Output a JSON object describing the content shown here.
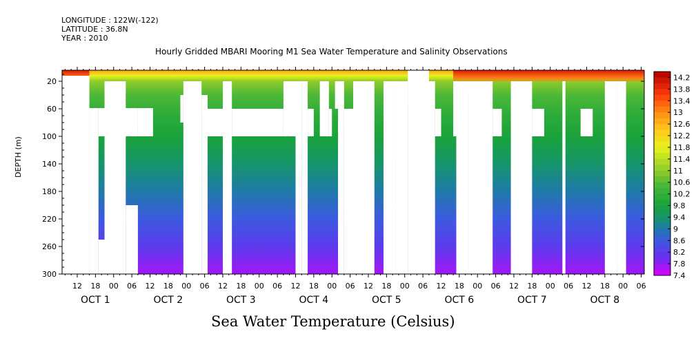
{
  "header": {
    "longitude": "LONGITUDE : 122W(-122)",
    "latitude": "LATITUDE : 36.8N",
    "year": "YEAR : 2010"
  },
  "chart_data": {
    "type": "heatmap",
    "title": "Hourly Gridded MBARI Mooring M1 Sea Water Temperature and Salinity Observations",
    "xlabel": "Sea Water Temperature (Celsius)",
    "ylabel": "DEPTH (m)",
    "x_unit": "hours since 2010-10-01 00:00",
    "xlim": [
      7,
      199
    ],
    "ylim": [
      300,
      4
    ],
    "y_ticks": [
      20,
      60,
      100,
      140,
      180,
      220,
      260,
      300
    ],
    "x_hour_ticks": [
      {
        "h": 12,
        "label": "12"
      },
      {
        "h": 18,
        "label": "18"
      },
      {
        "h": 24,
        "label": "00"
      },
      {
        "h": 30,
        "label": "06"
      },
      {
        "h": 36,
        "label": "12"
      },
      {
        "h": 42,
        "label": "18"
      },
      {
        "h": 48,
        "label": "00"
      },
      {
        "h": 54,
        "label": "06"
      },
      {
        "h": 60,
        "label": "12"
      },
      {
        "h": 66,
        "label": "18"
      },
      {
        "h": 72,
        "label": "00"
      },
      {
        "h": 78,
        "label": "06"
      },
      {
        "h": 84,
        "label": "12"
      },
      {
        "h": 90,
        "label": "18"
      },
      {
        "h": 96,
        "label": "00"
      },
      {
        "h": 102,
        "label": "06"
      },
      {
        "h": 108,
        "label": "12"
      },
      {
        "h": 114,
        "label": "18"
      },
      {
        "h": 120,
        "label": "00"
      },
      {
        "h": 126,
        "label": "06"
      },
      {
        "h": 132,
        "label": "12"
      },
      {
        "h": 138,
        "label": "18"
      },
      {
        "h": 144,
        "label": "00"
      },
      {
        "h": 150,
        "label": "06"
      },
      {
        "h": 156,
        "label": "12"
      },
      {
        "h": 162,
        "label": "18"
      },
      {
        "h": 168,
        "label": "00"
      },
      {
        "h": 174,
        "label": "06"
      },
      {
        "h": 180,
        "label": "12"
      },
      {
        "h": 186,
        "label": "18"
      },
      {
        "h": 192,
        "label": "00"
      },
      {
        "h": 198,
        "label": "06"
      }
    ],
    "x_day_labels": [
      {
        "h": 18,
        "label": "OCT 1"
      },
      {
        "h": 42,
        "label": "OCT 2"
      },
      {
        "h": 66,
        "label": "OCT 3"
      },
      {
        "h": 90,
        "label": "OCT 4"
      },
      {
        "h": 114,
        "label": "OCT 5"
      },
      {
        "h": 138,
        "label": "OCT 6"
      },
      {
        "h": 162,
        "label": "OCT 7"
      },
      {
        "h": 186,
        "label": "OCT 8"
      }
    ],
    "colorbar": {
      "min": 7.4,
      "max": 14.4,
      "step": 0.2,
      "labels": [
        14.2,
        13.8,
        13.4,
        13,
        12.6,
        12.2,
        11.8,
        11.4,
        11,
        10.6,
        10.2,
        9.8,
        9.4,
        9,
        8.6,
        8.2,
        7.8,
        7.4
      ]
    },
    "color_stops": [
      {
        "v": 7.4,
        "c": "#dd00ff"
      },
      {
        "v": 8.0,
        "c": "#6a2cf0"
      },
      {
        "v": 8.6,
        "c": "#3c5ae0"
      },
      {
        "v": 9.0,
        "c": "#1f7aa8"
      },
      {
        "v": 9.4,
        "c": "#15956a"
      },
      {
        "v": 9.8,
        "c": "#1aa33a"
      },
      {
        "v": 10.4,
        "c": "#3fb43a"
      },
      {
        "v": 11.0,
        "c": "#8fcc2a"
      },
      {
        "v": 11.8,
        "c": "#e8f21c"
      },
      {
        "v": 12.4,
        "c": "#ffc81a"
      },
      {
        "v": 13.0,
        "c": "#ff8c14"
      },
      {
        "v": 13.6,
        "c": "#ff3a0a"
      },
      {
        "v": 14.4,
        "c": "#b00000"
      }
    ],
    "profile": [
      {
        "depth": 4,
        "temp": 12.8
      },
      {
        "depth": 12,
        "temp": 11.8
      },
      {
        "depth": 20,
        "temp": 11.0
      },
      {
        "depth": 40,
        "temp": 10.5
      },
      {
        "depth": 70,
        "temp": 10.1
      },
      {
        "depth": 100,
        "temp": 9.8
      },
      {
        "depth": 140,
        "temp": 9.4
      },
      {
        "depth": 180,
        "temp": 9.0
      },
      {
        "depth": 220,
        "temp": 8.6
      },
      {
        "depth": 260,
        "temp": 8.2
      },
      {
        "depth": 300,
        "temp": 7.7
      }
    ],
    "warm_surface_periods": [
      {
        "from": 7,
        "to": 16,
        "temp": 13.6
      },
      {
        "from": 136,
        "to": 199,
        "temp": 13.8
      }
    ],
    "data_gaps": [
      {
        "t0": 7,
        "t1": 16,
        "z0": 12,
        "z1": 300
      },
      {
        "t0": 16,
        "t1": 19,
        "z0": 59,
        "z1": 300
      },
      {
        "t0": 19,
        "t1": 28,
        "z0": 250,
        "z1": 300
      },
      {
        "t0": 19,
        "t1": 32,
        "z0": 59,
        "z1": 100
      },
      {
        "t0": 21,
        "t1": 28,
        "z0": 20,
        "z1": 250
      },
      {
        "t0": 28,
        "t1": 32,
        "z0": 200,
        "z1": 300
      },
      {
        "t0": 32,
        "t1": 37,
        "z0": 59,
        "z1": 100
      },
      {
        "t0": 46,
        "t1": 47,
        "z0": 40,
        "z1": 80
      },
      {
        "t0": 47,
        "t1": 53,
        "z0": 20,
        "z1": 300
      },
      {
        "t0": 53,
        "t1": 55,
        "z0": 40,
        "z1": 300
      },
      {
        "t0": 55,
        "t1": 60,
        "z0": 60,
        "z1": 100
      },
      {
        "t0": 60,
        "t1": 63,
        "z0": 20,
        "z1": 300
      },
      {
        "t0": 63,
        "t1": 80,
        "z0": 60,
        "z1": 100
      },
      {
        "t0": 80,
        "t1": 84,
        "z0": 20,
        "z1": 100
      },
      {
        "t0": 84,
        "t1": 86,
        "z0": 20,
        "z1": 300
      },
      {
        "t0": 86,
        "t1": 88,
        "z0": 20,
        "z1": 300
      },
      {
        "t0": 88,
        "t1": 90,
        "z0": 60,
        "z1": 100
      },
      {
        "t0": 92,
        "t1": 95,
        "z0": 20,
        "z1": 100
      },
      {
        "t0": 95,
        "t1": 96,
        "z0": 60,
        "z1": 100
      },
      {
        "t0": 97,
        "t1": 98,
        "z0": 20,
        "z1": 60
      },
      {
        "t0": 98,
        "t1": 100,
        "z0": 20,
        "z1": 300
      },
      {
        "t0": 100,
        "t1": 103,
        "z0": 60,
        "z1": 300
      },
      {
        "t0": 103,
        "t1": 110,
        "z0": 20,
        "z1": 300
      },
      {
        "t0": 113,
        "t1": 117,
        "z0": 20,
        "z1": 300
      },
      {
        "t0": 117,
        "t1": 121,
        "z0": 20,
        "z1": 300
      },
      {
        "t0": 121,
        "t1": 128,
        "z0": 4,
        "z1": 20
      },
      {
        "t0": 121,
        "t1": 130,
        "z0": 20,
        "z1": 300
      },
      {
        "t0": 130,
        "t1": 132,
        "z0": 60,
        "z1": 100
      },
      {
        "t0": 136,
        "t1": 137,
        "z0": 20,
        "z1": 100
      },
      {
        "t0": 137,
        "t1": 141,
        "z0": 20,
        "z1": 300
      },
      {
        "t0": 141,
        "t1": 149,
        "z0": 20,
        "z1": 300
      },
      {
        "t0": 149,
        "t1": 152,
        "z0": 60,
        "z1": 100
      },
      {
        "t0": 155,
        "t1": 162,
        "z0": 20,
        "z1": 300
      },
      {
        "t0": 162,
        "t1": 166,
        "z0": 60,
        "z1": 100
      },
      {
        "t0": 172,
        "t1": 173,
        "z0": 20,
        "z1": 300
      },
      {
        "t0": 178,
        "t1": 182,
        "z0": 60,
        "z1": 100
      },
      {
        "t0": 186,
        "t1": 190,
        "z0": 20,
        "z1": 300
      },
      {
        "t0": 190,
        "t1": 193,
        "z0": 20,
        "z1": 300
      }
    ]
  }
}
